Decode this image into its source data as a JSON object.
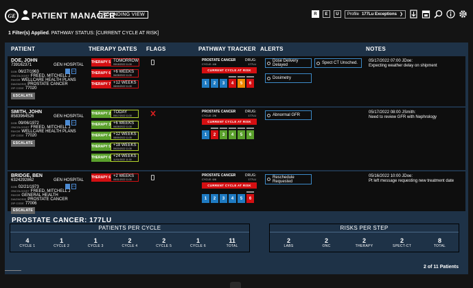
{
  "header": {
    "logo_text": "GE",
    "title": "PATIENT MANAGER",
    "view_badge": "ROUNDING VIEW",
    "buttons": [
      "R",
      "E",
      "U"
    ],
    "profile_label": "Profile",
    "profile_value": "177Lu Exceptions"
  },
  "filter": {
    "count": "1 Filter(s) Applied",
    "text": ". PATHWAY STATUS: [CURRENT CYCLE AT RISK]"
  },
  "columns": {
    "patient": "PATIENT",
    "therapy_dates": "THERAPY DATES",
    "flags": "FLAGS",
    "pathway": "PATHWAY TRACKER",
    "alerts": "ALERTS",
    "notes": "NOTES"
  },
  "field_keys": {
    "dob": "DOB",
    "oncologist": "ONCOLOGIST",
    "payor": "PAYOR",
    "diagnosis": "DIAGNOSIS",
    "zip": "ZIP CODE"
  },
  "therapy_tag": "THERAPY",
  "drug_label": "DRUG:",
  "patients": [
    {
      "name": "DOE, JOHN",
      "id": "739162371",
      "hospital": "GEN HOSPITAL",
      "dob": "06/27/1963",
      "oncologist": "FREED, MITCHELL J",
      "payor": "WELLCARE HEALTH PLANS",
      "diagnosis": "PROSTATE CANCER",
      "zip": "77020",
      "escalate": "ESCALATE",
      "therapies": [
        {
          "tag": "THERAPY",
          "num": "5",
          "when": "TOMORROW",
          "date": "05/18/2022 11:30"
        },
        {
          "tag": "THERAPY",
          "num": "6",
          "when": "+6 WEEKS",
          "date": "06/28/2022 11:30"
        },
        {
          "tag": "THERAPY",
          "num": "7",
          "when": "+12 WEEKS",
          "date": "08/09/2022 11:30"
        }
      ],
      "pathway": {
        "title": "PROSTATE CANCER",
        "cycle": "CYCLE: 4/6",
        "drug": "177LU",
        "risk": "CURRENT CYCLE AT RISK",
        "steps": [
          "1",
          "2",
          "3",
          "4",
          "5",
          "6"
        ]
      },
      "alerts": [
        "Dose Delivery Delayed",
        "Spect CT Unsched.",
        "Dosimetry"
      ],
      "note_time": "05/17/2022 07:00 JDoe:",
      "note": "Expecting weather delay on shipment"
    },
    {
      "name": "SMITH, JOHN",
      "id": "8583964526",
      "hospital": "GEN HOSPITAL",
      "dob": "09/06/1972",
      "oncologist": "FREED, MITCHELL J",
      "payor": "WELLCARE HEALTH PLANS",
      "diagnosis": "PROSTATE CANCER",
      "zip": "77020",
      "escalate": "ESCALATE",
      "therapies": [
        {
          "tag": "THERAPY",
          "num": "2",
          "when": "TODAY",
          "date": "05/17/2022 11:30"
        },
        {
          "tag": "THERAPY",
          "num": "3",
          "when": "+6 WEEKS",
          "date": "06/28/2022 11:30"
        },
        {
          "tag": "THERAPY",
          "num": "4",
          "when": "+12 WEEKS",
          "date": "08/09/2022 11:30"
        },
        {
          "tag": "THERAPY",
          "num": "5",
          "when": "+18 WEEKS",
          "date": "09/20/2022 11:30"
        },
        {
          "tag": "THERAPY",
          "num": "6",
          "when": "+24 WEEKS",
          "date": "11/01/2022 11:30"
        }
      ],
      "pathway": {
        "title": "PROSTATE CANCER",
        "cycle": "CYCLE: 2/6",
        "drug": "177LU",
        "risk": "CURRENT CYCLE AT RISK",
        "steps": [
          "1",
          "2",
          "3",
          "4",
          "5",
          "6"
        ]
      },
      "alerts": [
        "Abnormal GFR"
      ],
      "note_time": "05/17/2022 08:00 JSmith:",
      "note": "Need to review GFR with Nephrology"
    },
    {
      "name": "BRIDGE, BEN",
      "id": "6324292862",
      "hospital": "GEN HOSPITAL",
      "dob": "02/21/1973",
      "oncologist": "FREED, MITCHELL J",
      "payor": "GENERAL HEALTH",
      "diagnosis": "PROSTATE CANCER",
      "zip": "77006",
      "escalate": "ESCALATE",
      "therapies": [
        {
          "tag": "THERAPY",
          "num": "6",
          "when": "+2 WEEKS",
          "date": "05/31/2022 11:30"
        }
      ],
      "pathway": {
        "title": "PROSTATE CANCER",
        "cycle": "CYCLE: 6/6",
        "drug": "177LU",
        "risk": "CURRENT CYCLE AT RISK",
        "steps": [
          "1",
          "2",
          "3",
          "4",
          "5",
          "6"
        ]
      },
      "alerts": [
        "Reschedule Requested"
      ],
      "note_time": "05/16/2022 10:00 JDoe:",
      "note": "Pt left message requesting new treatment date"
    }
  ],
  "summary": {
    "title": "PROSTATE CANCER: 177LU",
    "per_cycle": {
      "heading": "PATIENTS PER CYCLE",
      "cells": [
        {
          "n": "4",
          "label": "CYCLE 1"
        },
        {
          "n": "1",
          "label": "CYCLE 2"
        },
        {
          "n": "1",
          "label": "CYCLE 3"
        },
        {
          "n": "2",
          "label": "CYCLE 4"
        },
        {
          "n": "2",
          "label": "CYCLE 5"
        },
        {
          "n": "1",
          "label": "CYCLE 6"
        },
        {
          "n": "11",
          "label": "TOTAL"
        }
      ]
    },
    "per_step": {
      "heading": "RISKS PER STEP",
      "cells": [
        {
          "n": "2",
          "label": "LABS"
        },
        {
          "n": "2",
          "label": "ONC"
        },
        {
          "n": "2",
          "label": "THERAPY"
        },
        {
          "n": "2",
          "label": "SPECT-CT"
        },
        {
          "n": "8",
          "label": "TOTAL"
        }
      ]
    }
  },
  "pagination": "2 of 11 Patients",
  "colors": {
    "panel": "#1e3247",
    "risk_red": "#d40f12",
    "therapy_green": "#5aa02c",
    "step_blue": "#1f7bc2",
    "step_orange": "#f08a00",
    "alert_border": "#3d8bc9"
  }
}
